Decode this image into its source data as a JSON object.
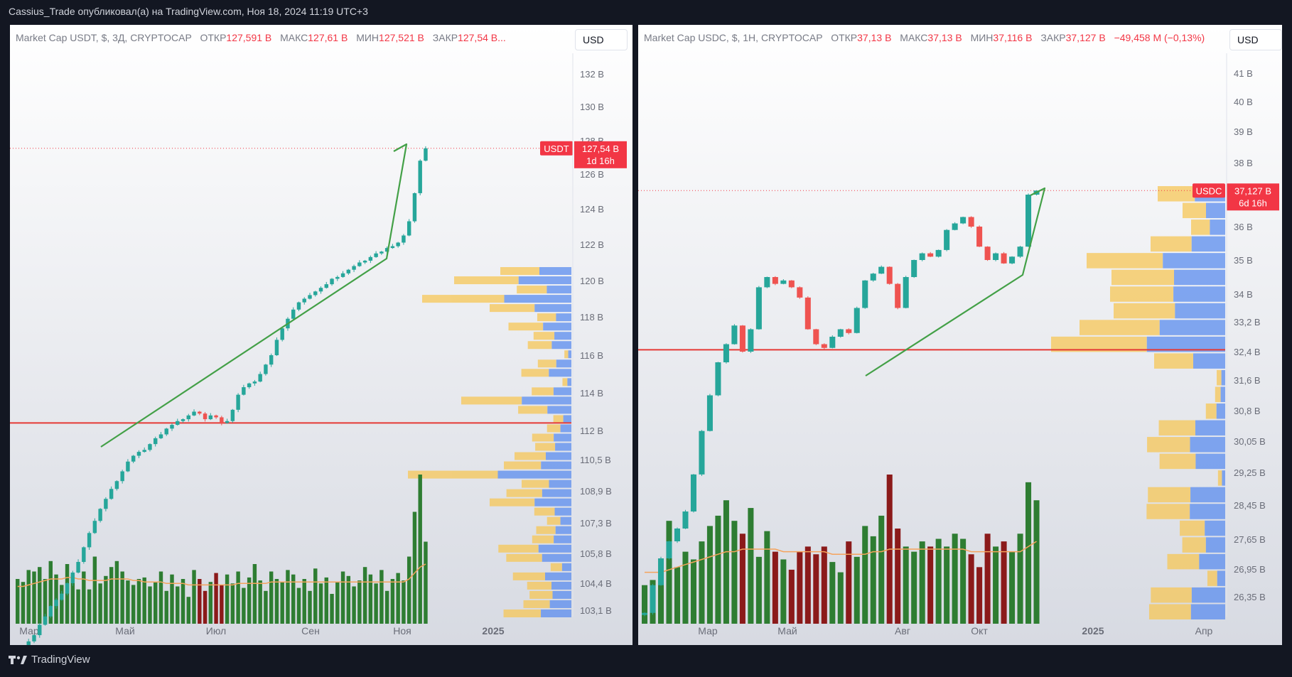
{
  "header": {
    "text": "Cassius_Trade опубликовал(а) на TradingView.com, Ноя 18, 2024 11:19 UTC+3"
  },
  "footer": {
    "brand": "TradingView",
    "logo_icon": "tradingview-logo-icon"
  },
  "colors": {
    "up": "#26a69a",
    "down": "#ef5350",
    "vol_up": "#2e7d32",
    "vol_down": "#8b1a1a",
    "trend": "#43a047",
    "level": "#e53935",
    "ma": "#f5a35c",
    "vp_up": "#f7c757",
    "vp_down": "#5b8def"
  },
  "chart_data": [
    {
      "type": "candlestick",
      "symbol": "Market Cap USDT, $, 3Д, CRYPTOCAP",
      "currency": "USD",
      "ohlc": {
        "open_label": "ОТКР",
        "open": "127,591 B",
        "high_label": "МАКС",
        "high": "127,61 B",
        "low_label": "МИН",
        "low": "127,521 B",
        "close_label": "ЗАКР",
        "close": "127,54 B..."
      },
      "price_label": {
        "ticker": "USDT",
        "value": "127,54 B",
        "countdown": "1d 16h"
      },
      "x_labels": [
        "Мар",
        "Май",
        "Июл",
        "Сен",
        "Ноя",
        "2025"
      ],
      "y_labels": [
        "132 B",
        "130 B",
        "128 B",
        "126 B",
        "124 B",
        "122 B",
        "120 B",
        "118 B",
        "116 B",
        "114 B",
        "112 B",
        "110,5 B",
        "108,9 B",
        "107,3 B",
        "105,8 B",
        "104,4 B",
        "103,1 B"
      ],
      "current_price": 127.54,
      "support_level": 112.4,
      "closes": [
        100.5,
        101.2,
        101.6,
        101.9,
        102.4,
        102.8,
        103.3,
        103.6,
        103.9,
        104.4,
        104.9,
        105.4,
        106.1,
        106.8,
        107.4,
        108.0,
        108.5,
        109.0,
        109.4,
        109.9,
        110.4,
        110.7,
        110.9,
        111.0,
        111.3,
        111.6,
        111.8,
        112.1,
        112.3,
        112.5,
        112.6,
        112.8,
        113.0,
        112.9,
        112.6,
        112.8,
        112.7,
        112.4,
        112.5,
        113.1,
        113.9,
        114.3,
        114.5,
        114.6,
        115.0,
        115.5,
        116.0,
        116.8,
        117.4,
        117.9,
        118.4,
        118.8,
        119.0,
        119.2,
        119.4,
        119.6,
        119.8,
        120.1,
        120.2,
        120.4,
        120.6,
        120.8,
        121.0,
        121.1,
        121.3,
        121.5,
        121.6,
        121.8,
        121.9,
        122.1,
        122.5,
        123.3,
        124.9,
        126.8,
        127.54
      ],
      "volumes": [
        30,
        28,
        36,
        35,
        38,
        30,
        42,
        33,
        26,
        40,
        33,
        23,
        35,
        23,
        45,
        27,
        32,
        38,
        42,
        35,
        29,
        26,
        30,
        31,
        25,
        28,
        35,
        22,
        33,
        25,
        30,
        18,
        36,
        30,
        22,
        28,
        34,
        26,
        33,
        27,
        35,
        24,
        31,
        40,
        29,
        22,
        35,
        30,
        28,
        36,
        33,
        24,
        30,
        22,
        37,
        27,
        31,
        20,
        28,
        35,
        32,
        25,
        29,
        38,
        33,
        27,
        36,
        22,
        30,
        34,
        29,
        45,
        75,
        100,
        55
      ],
      "volume_ma": [
        25,
        25,
        26,
        27,
        28,
        29,
        30,
        30,
        30,
        31,
        31,
        30,
        30,
        29,
        29,
        29,
        29,
        30,
        30,
        30,
        30,
        29,
        29,
        28,
        28,
        28,
        28,
        27,
        27,
        27,
        27,
        26,
        26,
        26,
        26,
        26,
        26,
        26,
        26,
        26,
        27,
        27,
        27,
        27,
        27,
        27,
        28,
        28,
        28,
        28,
        28,
        28,
        28,
        28,
        28,
        28,
        28,
        28,
        28,
        28,
        28,
        28,
        28,
        28,
        28,
        28,
        28,
        28,
        28,
        28,
        28,
        30,
        34,
        38,
        40
      ]
    },
    {
      "type": "candlestick",
      "symbol": "Market Cap USDC, $, 1Н, CRYPTOCAP",
      "currency": "USD",
      "ohlc": {
        "open_label": "ОТКР",
        "open": "37,13 B",
        "high_label": "МАКС",
        "high": "37,13 B",
        "low_label": "МИН",
        "low": "37,116 B",
        "close_label": "ЗАКР",
        "close": "37,127 B",
        "change": "−49,458 M (−0,13%)"
      },
      "price_label": {
        "ticker": "USDC",
        "value": "37,127 B",
        "countdown": "6d 16h"
      },
      "x_labels": [
        "Мар",
        "Май",
        "Авг",
        "Окт",
        "2025",
        "Апр"
      ],
      "y_labels": [
        "41 B",
        "40 B",
        "39 B",
        "38 B",
        "36 B",
        "35 B",
        "34 B",
        "33,2 B",
        "32,4 B",
        "31,6 B",
        "30,8 B",
        "30,05 B",
        "29,25 B",
        "28,45 B",
        "27,65 B",
        "26,95 B",
        "26,35 B"
      ],
      "current_price": 37.127,
      "support_level": 32.45,
      "closes": [
        26.0,
        26.6,
        27.2,
        27.6,
        27.9,
        28.3,
        29.2,
        30.3,
        31.2,
        32.1,
        32.6,
        33.1,
        32.4,
        33.0,
        34.2,
        34.5,
        34.3,
        34.4,
        34.2,
        33.9,
        33.0,
        32.6,
        32.5,
        32.8,
        33.0,
        32.9,
        33.6,
        34.4,
        34.6,
        34.8,
        34.3,
        33.6,
        34.5,
        35.0,
        35.2,
        35.1,
        35.3,
        35.9,
        36.1,
        36.3,
        36.0,
        35.4,
        35.0,
        35.2,
        34.9,
        35.1,
        35.4,
        37.0,
        37.127
      ],
      "volumes": [
        15,
        17,
        20,
        40,
        22,
        28,
        25,
        32,
        38,
        42,
        48,
        40,
        35,
        45,
        26,
        36,
        28,
        25,
        21,
        28,
        30,
        27,
        30,
        24,
        20,
        32,
        26,
        38,
        34,
        42,
        58,
        37,
        30,
        28,
        32,
        30,
        33,
        30,
        35,
        33,
        27,
        22,
        35,
        30,
        32,
        28,
        35,
        55,
        48
      ],
      "volume_ma": [
        20,
        20,
        20,
        21,
        22,
        23,
        24,
        25,
        26,
        27,
        28,
        28,
        29,
        29,
        29,
        29,
        29,
        28,
        28,
        28,
        28,
        28,
        28,
        27,
        27,
        27,
        27,
        27,
        28,
        28,
        29,
        29,
        29,
        29,
        29,
        29,
        29,
        29,
        29,
        29,
        28,
        28,
        28,
        28,
        28,
        28,
        28,
        30,
        32
      ]
    }
  ]
}
